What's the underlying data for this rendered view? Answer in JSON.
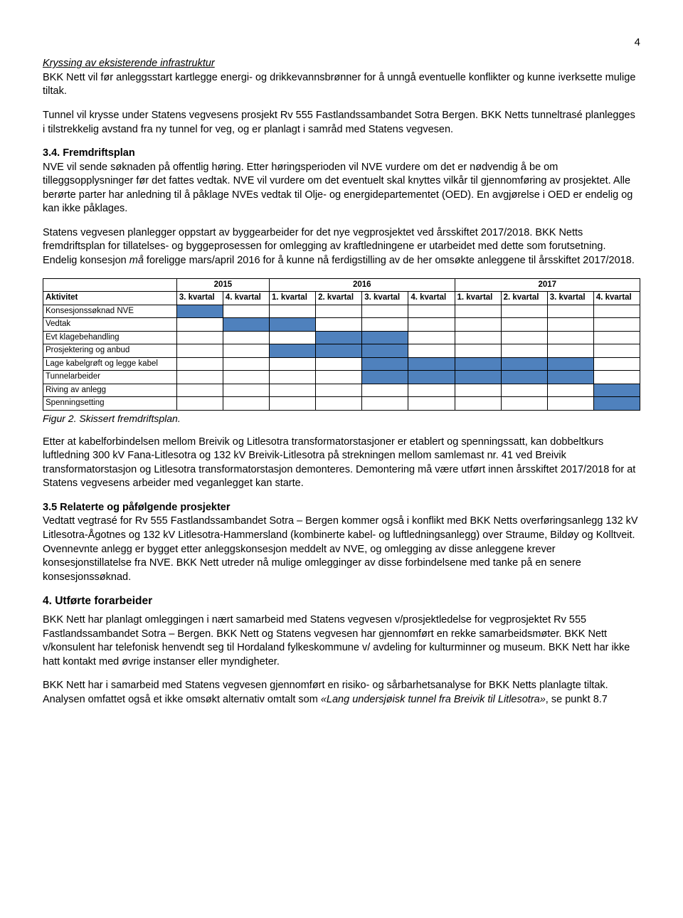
{
  "page_number": "4",
  "s1": {
    "heading": "Kryssing av eksisterende infrastruktur",
    "p1": "BKK Nett vil før anleggsstart kartlegge energi- og drikkevannsbrønner for å unngå eventuelle konflikter og kunne iverksette mulige tiltak.",
    "p2": "Tunnel vil krysse under Statens vegvesens prosjekt Rv 555 Fastlandssambandet Sotra Bergen. BKK Netts tunneltrasé planlegges i tilstrekkelig avstand fra ny tunnel for veg, og er planlagt i samråd med Statens vegvesen."
  },
  "s2": {
    "heading": "3.4. Fremdriftsplan",
    "p1": "NVE vil sende søknaden på offentlig høring. Etter høringsperioden vil NVE vurdere om det er nødvendig å be om tilleggsopplysninger før det fattes vedtak. NVE vil vurdere om det eventuelt skal knyttes vilkår til gjennomføring av prosjektet. Alle berørte parter har anledning til å påklage NVEs vedtak til Olje- og energidepartementet (OED). En avgjørelse i OED er endelig og kan ikke påklages.",
    "p2a": "Statens vegvesen planlegger oppstart av byggearbeider for det nye vegprosjektet ved årsskiftet 2017/2018. BKK Netts fremdriftsplan for tillatelses- og byggeprosessen for omlegging av kraftledningene er utarbeidet med dette som forutsetning. Endelig konsesjon ",
    "p2b_em": "må",
    "p2c": " foreligge mars/april 2016 for å kunne nå ferdigstilling av de her omsøkte anleggene til årsskiftet 2017/2018."
  },
  "gantt": {
    "years": [
      "2015",
      "2016",
      "2017"
    ],
    "year_spans": [
      2,
      4,
      4
    ],
    "row_header": "Aktivitet",
    "quarters": [
      "3. kvartal",
      "4. kvartal",
      "1. kvartal",
      "2. kvartal",
      "3. kvartal",
      "4. kvartal",
      "1. kvartal",
      "2. kvartal",
      "3. kvartal",
      "4. kvartal"
    ],
    "rows": [
      {
        "label": "Konsesjonssøknad NVE",
        "fill": [
          1,
          0,
          0,
          0,
          0,
          0,
          0,
          0,
          0,
          0
        ]
      },
      {
        "label": "Vedtak",
        "fill": [
          0,
          1,
          1,
          0,
          0,
          0,
          0,
          0,
          0,
          0
        ]
      },
      {
        "label": "Evt klagebehandling",
        "fill": [
          0,
          0,
          0,
          1,
          1,
          0,
          0,
          0,
          0,
          0
        ]
      },
      {
        "label": "Prosjektering og anbud",
        "fill": [
          0,
          0,
          1,
          1,
          1,
          0,
          0,
          0,
          0,
          0
        ]
      },
      {
        "label": "Lage kabelgrøft og legge kabel",
        "fill": [
          0,
          0,
          0,
          0,
          1,
          1,
          1,
          1,
          1,
          0
        ]
      },
      {
        "label": "Tunnelarbeider",
        "fill": [
          0,
          0,
          0,
          0,
          1,
          1,
          1,
          1,
          1,
          0
        ]
      },
      {
        "label": "Riving av anlegg",
        "fill": [
          0,
          0,
          0,
          0,
          0,
          0,
          0,
          0,
          0,
          1
        ]
      },
      {
        "label": "Spenningsetting",
        "fill": [
          0,
          0,
          0,
          0,
          0,
          0,
          0,
          0,
          0,
          1
        ]
      }
    ],
    "fill_color": "#4f81bd",
    "border_color": "#000000",
    "fontsize": 11.5
  },
  "fig_caption": "Figur 2. Skissert fremdriftsplan.",
  "s3": {
    "p1": "Etter at kabelforbindelsen mellom Breivik og Litlesotra transformatorstasjoner er etablert og spenningssatt, kan dobbeltkurs luftledning 300 kV Fana-Litlesotra og 132 kV Breivik-Litlesotra på strekningen mellom samlemast nr. 41 ved Breivik transformatorstasjon og Litlesotra transformatorstasjon demonteres. Demontering må være utført innen årsskiftet 2017/2018 for at Statens vegvesens arbeider med veganlegget kan starte."
  },
  "s4": {
    "heading": "3.5 Relaterte og påfølgende prosjekter",
    "p1": "Vedtatt vegtrasé for Rv 555 Fastlandssambandet Sotra – Bergen kommer også i konflikt med BKK Netts overføringsanlegg 132 kV Litlesotra-Ågotnes og 132 kV Litlesotra-Hammersland (kombinerte kabel- og luftledningsanlegg) over Straume, Bildøy og Kolltveit. Ovennevnte anlegg er bygget etter anleggskonsesjon meddelt av NVE, og omlegging av disse anleggene krever konsesjonstillatelse fra NVE. BKK Nett utreder nå mulige omlegginger av disse forbindelsene med tanke på en senere konsesjonssøknad."
  },
  "s5": {
    "heading": "4. Utførte forarbeider",
    "p1": "BKK Nett har planlagt omleggingen i nært samarbeid med Statens vegvesen v/prosjektledelse for vegprosjektet Rv 555 Fastlandssambandet Sotra – Bergen. BKK Nett og Statens vegvesen har gjennomført en rekke samarbeidsmøter. BKK Nett v/konsulent har telefonisk henvendt seg til Hordaland fylkeskommune v/ avdeling for kulturminner og museum. BKK Nett har ikke hatt kontakt med øvrige instanser eller myndigheter.",
    "p2a": "BKK Nett har i samarbeid med Statens vegvesen gjennomført en risiko- og sårbarhetsanalyse for BKK Netts planlagte tiltak. Analysen omfattet også et ikke omsøkt alternativ omtalt som ",
    "p2b_em": "«Lang undersjøisk tunnel fra Breivik til Litlesotra»",
    "p2c": ", se punkt 8.7"
  }
}
